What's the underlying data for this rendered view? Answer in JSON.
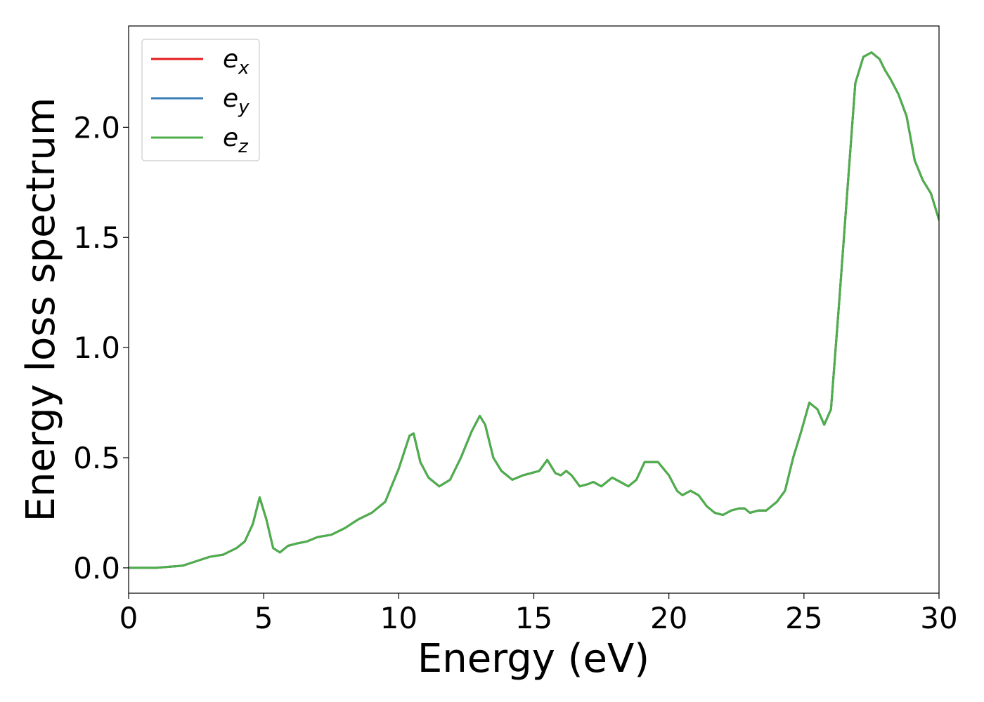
{
  "chart_data": {
    "type": "line",
    "xlabel": "Energy (eV)",
    "ylabel": "Energy loss spectrum",
    "xlim": [
      0,
      30
    ],
    "ylim": [
      -0.115,
      2.46
    ],
    "xticks": [
      0,
      5,
      10,
      15,
      20,
      25,
      30
    ],
    "xtick_labels": [
      "0",
      "5",
      "10",
      "15",
      "20",
      "25",
      "30"
    ],
    "yticks": [
      0.0,
      0.5,
      1.0,
      1.5,
      2.0
    ],
    "ytick_labels": [
      "0.0",
      "0.5",
      "1.0",
      "1.5",
      "2.0"
    ],
    "grid": false,
    "legend_position": "top-left",
    "x": [
      0,
      1,
      2,
      2.5,
      3,
      3.5,
      4,
      4.3,
      4.6,
      4.85,
      5.1,
      5.35,
      5.6,
      5.9,
      6.2,
      6.6,
      7.0,
      7.5,
      8.0,
      8.5,
      9.0,
      9.5,
      10.0,
      10.4,
      10.55,
      10.8,
      11.1,
      11.5,
      11.9,
      12.3,
      12.7,
      13.0,
      13.2,
      13.5,
      13.8,
      14.2,
      14.6,
      14.9,
      15.2,
      15.5,
      15.8,
      16.0,
      16.2,
      16.4,
      16.7,
      17.0,
      17.2,
      17.5,
      17.9,
      18.2,
      18.5,
      18.8,
      19.1,
      19.3,
      19.6,
      20.0,
      20.3,
      20.5,
      20.8,
      21.1,
      21.4,
      21.7,
      22.0,
      22.3,
      22.6,
      22.8,
      23.0,
      23.3,
      23.6,
      24.0,
      24.3,
      24.6,
      24.9,
      25.2,
      25.5,
      25.75,
      26.0,
      26.3,
      26.6,
      26.9,
      27.2,
      27.5,
      27.8,
      28.0,
      28.2,
      28.5,
      28.8,
      29.1,
      29.4,
      29.7,
      30.0
    ],
    "series": [
      {
        "name": "e_x",
        "label_base": "e",
        "label_sub": "x",
        "color": "#e31a1c",
        "values": [
          0.0,
          0.0,
          0.01,
          0.03,
          0.05,
          0.06,
          0.09,
          0.12,
          0.2,
          0.32,
          0.22,
          0.09,
          0.07,
          0.1,
          0.11,
          0.12,
          0.14,
          0.15,
          0.18,
          0.22,
          0.25,
          0.3,
          0.45,
          0.6,
          0.61,
          0.48,
          0.41,
          0.37,
          0.4,
          0.5,
          0.62,
          0.69,
          0.65,
          0.5,
          0.44,
          0.4,
          0.42,
          0.43,
          0.44,
          0.49,
          0.43,
          0.42,
          0.44,
          0.42,
          0.37,
          0.38,
          0.39,
          0.37,
          0.41,
          0.39,
          0.37,
          0.4,
          0.48,
          0.48,
          0.48,
          0.42,
          0.35,
          0.33,
          0.35,
          0.33,
          0.28,
          0.25,
          0.24,
          0.26,
          0.27,
          0.27,
          0.25,
          0.26,
          0.26,
          0.3,
          0.35,
          0.5,
          0.62,
          0.75,
          0.72,
          0.65,
          0.72,
          1.2,
          1.7,
          2.2,
          2.32,
          2.34,
          2.31,
          2.26,
          2.22,
          2.15,
          2.05,
          1.85,
          1.76,
          1.7,
          1.58
        ]
      },
      {
        "name": "e_y",
        "label_base": "e",
        "label_sub": "y",
        "color": "#377eb8",
        "values": [
          0.0,
          0.0,
          0.01,
          0.03,
          0.05,
          0.06,
          0.09,
          0.12,
          0.2,
          0.32,
          0.22,
          0.09,
          0.07,
          0.1,
          0.11,
          0.12,
          0.14,
          0.15,
          0.18,
          0.22,
          0.25,
          0.3,
          0.45,
          0.6,
          0.61,
          0.48,
          0.41,
          0.37,
          0.4,
          0.5,
          0.62,
          0.69,
          0.65,
          0.5,
          0.44,
          0.4,
          0.42,
          0.43,
          0.44,
          0.49,
          0.43,
          0.42,
          0.44,
          0.42,
          0.37,
          0.38,
          0.39,
          0.37,
          0.41,
          0.39,
          0.37,
          0.4,
          0.48,
          0.48,
          0.48,
          0.42,
          0.35,
          0.33,
          0.35,
          0.33,
          0.28,
          0.25,
          0.24,
          0.26,
          0.27,
          0.27,
          0.25,
          0.26,
          0.26,
          0.3,
          0.35,
          0.5,
          0.62,
          0.75,
          0.72,
          0.65,
          0.72,
          1.2,
          1.7,
          2.2,
          2.32,
          2.34,
          2.31,
          2.26,
          2.22,
          2.15,
          2.05,
          1.85,
          1.76,
          1.7,
          1.58
        ]
      },
      {
        "name": "e_z",
        "label_base": "e",
        "label_sub": "z",
        "color": "#4daf4a",
        "values": [
          0.0,
          0.0,
          0.01,
          0.03,
          0.05,
          0.06,
          0.09,
          0.12,
          0.2,
          0.32,
          0.22,
          0.09,
          0.07,
          0.1,
          0.11,
          0.12,
          0.14,
          0.15,
          0.18,
          0.22,
          0.25,
          0.3,
          0.45,
          0.6,
          0.61,
          0.48,
          0.41,
          0.37,
          0.4,
          0.5,
          0.62,
          0.69,
          0.65,
          0.5,
          0.44,
          0.4,
          0.42,
          0.43,
          0.44,
          0.49,
          0.43,
          0.42,
          0.44,
          0.42,
          0.37,
          0.38,
          0.39,
          0.37,
          0.41,
          0.39,
          0.37,
          0.4,
          0.48,
          0.48,
          0.48,
          0.42,
          0.35,
          0.33,
          0.35,
          0.33,
          0.28,
          0.25,
          0.24,
          0.26,
          0.27,
          0.27,
          0.25,
          0.26,
          0.26,
          0.3,
          0.35,
          0.5,
          0.62,
          0.75,
          0.72,
          0.65,
          0.72,
          1.2,
          1.7,
          2.2,
          2.32,
          2.34,
          2.31,
          2.26,
          2.22,
          2.15,
          2.05,
          1.85,
          1.76,
          1.7,
          1.58
        ]
      }
    ]
  }
}
